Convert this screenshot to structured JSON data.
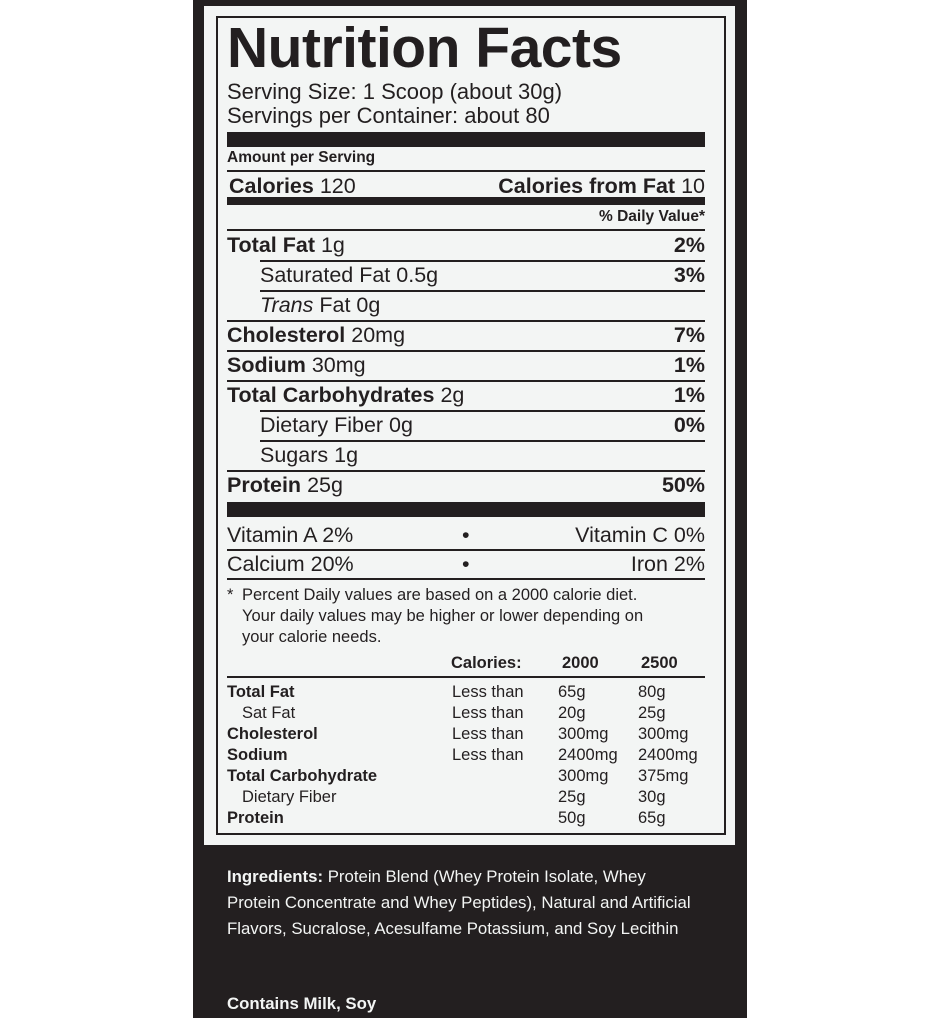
{
  "title": "Nutrition Facts",
  "serving_size": "Serving Size: 1 Scoop (about 30g)",
  "servings_per_container": "Servings per Container: about 80",
  "amount_per_serving": "Amount per Serving",
  "calories": {
    "label": "Calories",
    "value": "120",
    "fat_label": "Calories from Fat",
    "fat_value": "10"
  },
  "daily_value_header": "% Daily Value*",
  "nutrients": [
    {
      "name": "Total Fat",
      "amount": "1g",
      "dv": "2%"
    },
    {
      "name": "Saturated Fat",
      "amount": "0.5g",
      "dv": "3%"
    },
    {
      "name": "Trans",
      "name2": "Fat",
      "amount": "0g",
      "dv": ""
    },
    {
      "name": "Cholesterol",
      "amount": "20mg",
      "dv": "7%"
    },
    {
      "name": "Sodium",
      "amount": "30mg",
      "dv": "1%"
    },
    {
      "name": "Total Carbohydrates",
      "amount": "2g",
      "dv": "1%"
    },
    {
      "name": "Dietary Fiber",
      "amount": "0g",
      "dv": "0%"
    },
    {
      "name": "Sugars",
      "amount": "1g",
      "dv": ""
    },
    {
      "name": "Protein",
      "amount": "25g",
      "dv": "50%"
    }
  ],
  "vitamins": [
    {
      "left": "Vitamin A  2%",
      "right": "Vitamin C  0%"
    },
    {
      "left": "Calcium  20%",
      "right": "Iron  2%"
    }
  ],
  "footnote": [
    "*",
    "Percent Daily values are based on a 2000 calorie diet.",
    "Your daily values may be higher or lower depending on",
    "your calorie needs."
  ],
  "reference_table": {
    "headers": [
      "Calories:",
      "2000",
      "2500"
    ],
    "rows": [
      [
        "Total Fat",
        "Less than",
        "65g",
        "80g"
      ],
      [
        "Sat Fat",
        "Less than",
        "20g",
        "25g"
      ],
      [
        "Cholesterol",
        "Less than",
        "300mg",
        "300mg"
      ],
      [
        "Sodium",
        "Less than",
        "2400mg",
        "2400mg"
      ],
      [
        "Total Carbohydrate",
        "",
        "300mg",
        "375mg"
      ],
      [
        "Dietary Fiber",
        "",
        "25g",
        "30g"
      ],
      [
        "Protein",
        "",
        "50g",
        "65g"
      ]
    ]
  },
  "ingredients": {
    "label": "Ingredients:",
    "text": " Protein Blend (Whey Protein Isolate, Whey Protein Concentrate and Whey Peptides), Natural and Artificial Flavors, Sucralose, Acesulfame Potassium, and Soy Lecithin"
  },
  "contains": "Contains Milk, Soy"
}
